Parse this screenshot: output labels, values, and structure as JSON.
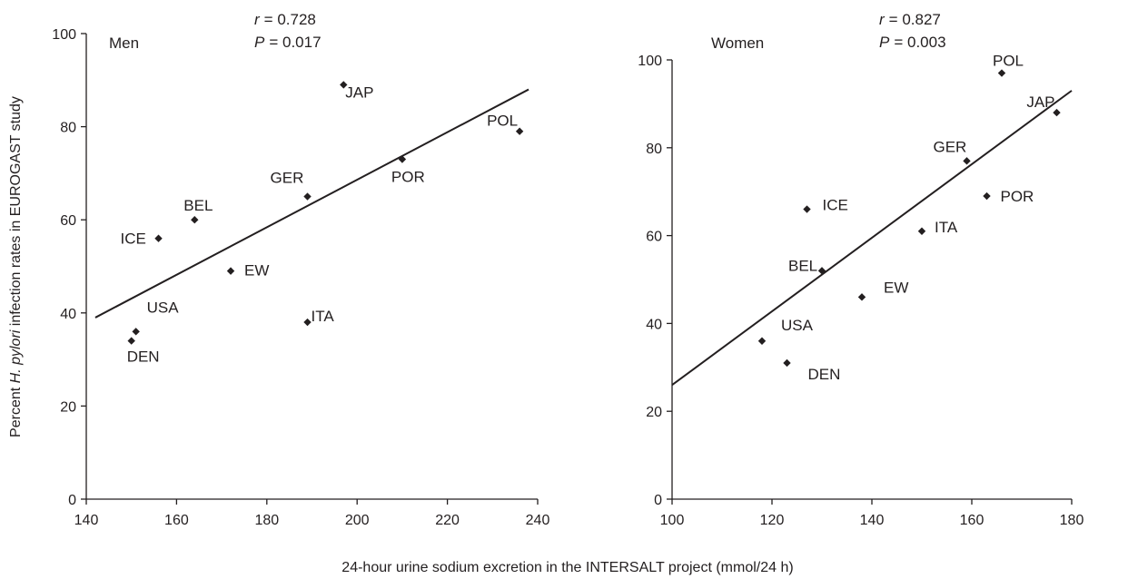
{
  "chart_data": [
    {
      "type": "scatter",
      "panel": "Men",
      "r_label": "r",
      "r_value": "= 0.728",
      "p_label": "P",
      "p_value": "= 0.017",
      "xlim": [
        140,
        240
      ],
      "ylim": [
        0,
        100
      ],
      "xticks": [
        140,
        160,
        180,
        200,
        220,
        240
      ],
      "yticks": [
        0,
        20,
        40,
        60,
        80,
        100
      ],
      "points": [
        {
          "label": "JAP",
          "x": 197,
          "y": 89
        },
        {
          "label": "POL",
          "x": 236,
          "y": 79
        },
        {
          "label": "POR",
          "x": 210,
          "y": 73
        },
        {
          "label": "GER",
          "x": 189,
          "y": 65
        },
        {
          "label": "BEL",
          "x": 164,
          "y": 60
        },
        {
          "label": "ICE",
          "x": 156,
          "y": 56
        },
        {
          "label": "EW",
          "x": 172,
          "y": 49
        },
        {
          "label": "ITA",
          "x": 189,
          "y": 38
        },
        {
          "label": "USA",
          "x": 151,
          "y": 36
        },
        {
          "label": "DEN",
          "x": 150,
          "y": 34
        }
      ],
      "fit_line": [
        {
          "x": 142,
          "y": 39
        },
        {
          "x": 238,
          "y": 88
        }
      ]
    },
    {
      "type": "scatter",
      "panel": "Women",
      "r_label": "r",
      "r_value": "= 0.827",
      "p_label": "P",
      "p_value": "= 0.003",
      "xlim": [
        100,
        180
      ],
      "ylim": [
        0,
        100
      ],
      "xticks": [
        100,
        120,
        140,
        160,
        180
      ],
      "yticks": [
        0,
        20,
        40,
        60,
        80,
        100
      ],
      "points": [
        {
          "label": "POL",
          "x": 166,
          "y": 97
        },
        {
          "label": "JAP",
          "x": 177,
          "y": 88
        },
        {
          "label": "GER",
          "x": 159,
          "y": 77
        },
        {
          "label": "POR",
          "x": 163,
          "y": 69
        },
        {
          "label": "ICE",
          "x": 127,
          "y": 66
        },
        {
          "label": "ITA",
          "x": 150,
          "y": 61
        },
        {
          "label": "BEL",
          "x": 130,
          "y": 52
        },
        {
          "label": "EW",
          "x": 138,
          "y": 46
        },
        {
          "label": "USA",
          "x": 118,
          "y": 36
        },
        {
          "label": "DEN",
          "x": 123,
          "y": 31
        }
      ],
      "fit_line": [
        {
          "x": 100,
          "y": 26
        },
        {
          "x": 180,
          "y": 93
        }
      ]
    }
  ],
  "ylabel": {
    "prefix": "Percent ",
    "italic": "H. pylori",
    "suffix": " infection rates in EUROGAST study"
  },
  "xlabel": "24-hour urine sodium excretion in the INTERSALT project (mmol/24 h)"
}
